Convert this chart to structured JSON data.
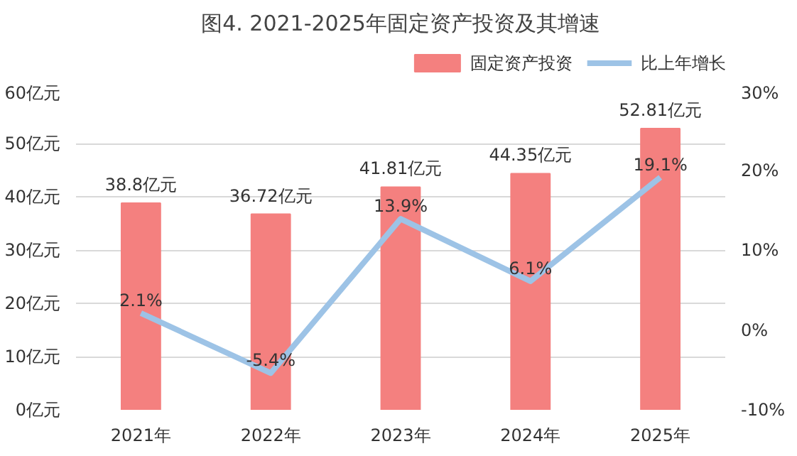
{
  "chart_data": {
    "type": "bar",
    "title": "图4. 2021-2025年固定资产投资及其增速",
    "categories": [
      "2021年",
      "2022年",
      "2023年",
      "2024年",
      "2025年"
    ],
    "series": [
      {
        "name": "固定资产投资",
        "type": "bar",
        "color": "#f4807f",
        "values": [
          38.8,
          36.72,
          41.81,
          44.35,
          52.81
        ],
        "value_labels": [
          "38.8亿元",
          "36.72亿元",
          "41.81亿元",
          "44.35亿元",
          "52.81亿元"
        ]
      },
      {
        "name": "比上年增长",
        "type": "line",
        "axis": "y2",
        "color": "#9dc3e6",
        "values": [
          2.1,
          -5.4,
          13.9,
          6.1,
          19.1
        ],
        "value_labels": [
          "2.1%",
          "-5.4%",
          "13.9%",
          "6.1%",
          "19.1%"
        ]
      }
    ],
    "ylim": [
      0,
      60
    ],
    "yticks": [
      {
        "value": 0,
        "label": "0亿元"
      },
      {
        "value": 10,
        "label": "10亿元"
      },
      {
        "value": 20,
        "label": "20亿元"
      },
      {
        "value": 30,
        "label": "30亿元"
      },
      {
        "value": 40,
        "label": "40亿元"
      },
      {
        "value": 50,
        "label": "50亿元"
      },
      {
        "value": 60,
        "label": "60亿元"
      }
    ],
    "y2lim": [
      -10,
      30
    ],
    "y2ticks": [
      {
        "value": -10,
        "label": "-10%"
      },
      {
        "value": 0,
        "label": "0%"
      },
      {
        "value": 10,
        "label": "10%"
      },
      {
        "value": 20,
        "label": "20%"
      },
      {
        "value": 30,
        "label": "30%"
      }
    ],
    "grid": "y",
    "legend": "top right",
    "marker": "none",
    "line_style": "solid"
  }
}
